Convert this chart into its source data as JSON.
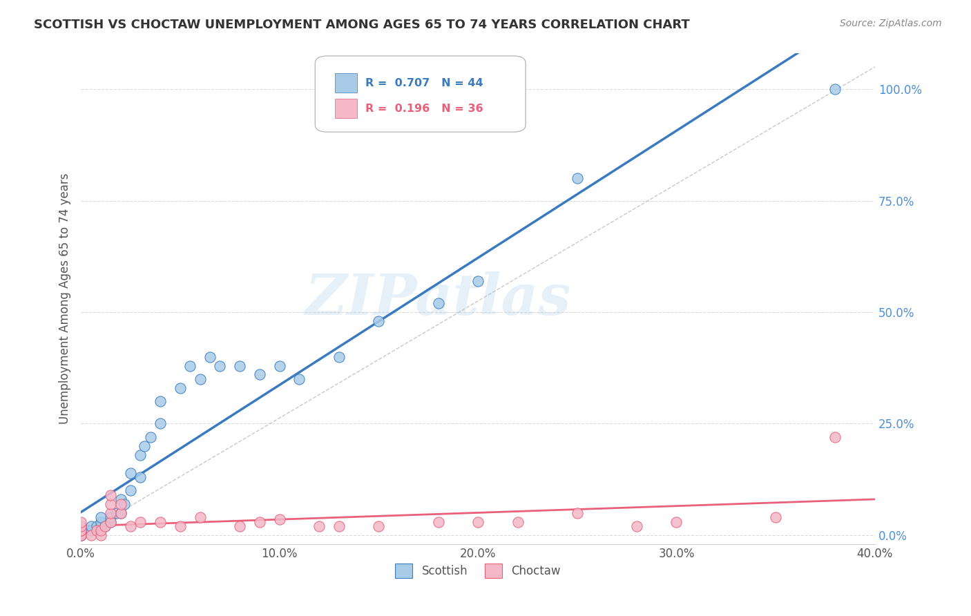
{
  "title": "SCOTTISH VS CHOCTAW UNEMPLOYMENT AMONG AGES 65 TO 74 YEARS CORRELATION CHART",
  "source": "Source: ZipAtlas.com",
  "ylabel": "Unemployment Among Ages 65 to 74 years",
  "xlim": [
    0.0,
    0.4
  ],
  "ylim": [
    -0.02,
    1.08
  ],
  "xtick_labels": [
    "0.0%",
    "10.0%",
    "20.0%",
    "30.0%",
    "40.0%"
  ],
  "xtick_vals": [
    0.0,
    0.1,
    0.2,
    0.3,
    0.4
  ],
  "ytick_labels": [
    "0.0%",
    "25.0%",
    "50.0%",
    "75.0%",
    "100.0%"
  ],
  "ytick_vals": [
    0.0,
    0.25,
    0.5,
    0.75,
    1.0
  ],
  "scottish_color": "#a8cce8",
  "choctaw_color": "#f4b8c8",
  "scottish_line_color": "#3a7abf",
  "choctaw_line_color": "#e8607a",
  "scottish_R": 0.707,
  "scottish_N": 44,
  "choctaw_R": 0.196,
  "choctaw_N": 36,
  "scottish_x": [
    0.0,
    0.0,
    0.0,
    0.0,
    0.0,
    0.0,
    0.0,
    0.005,
    0.005,
    0.008,
    0.01,
    0.01,
    0.01,
    0.01,
    0.012,
    0.015,
    0.015,
    0.018,
    0.02,
    0.02,
    0.022,
    0.025,
    0.025,
    0.03,
    0.03,
    0.032,
    0.035,
    0.04,
    0.04,
    0.05,
    0.055,
    0.06,
    0.065,
    0.07,
    0.08,
    0.09,
    0.1,
    0.11,
    0.13,
    0.15,
    0.18,
    0.2,
    0.25,
    0.38
  ],
  "scottish_y": [
    0.0,
    0.0,
    0.0,
    0.0,
    0.01,
    0.01,
    0.01,
    0.01,
    0.02,
    0.02,
    0.02,
    0.02,
    0.03,
    0.04,
    0.02,
    0.03,
    0.04,
    0.05,
    0.05,
    0.08,
    0.07,
    0.1,
    0.14,
    0.13,
    0.18,
    0.2,
    0.22,
    0.25,
    0.3,
    0.33,
    0.38,
    0.35,
    0.4,
    0.38,
    0.38,
    0.36,
    0.38,
    0.35,
    0.4,
    0.48,
    0.52,
    0.57,
    0.8,
    1.0
  ],
  "choctaw_x": [
    0.0,
    0.0,
    0.0,
    0.0,
    0.0,
    0.0,
    0.005,
    0.008,
    0.01,
    0.01,
    0.012,
    0.015,
    0.015,
    0.015,
    0.015,
    0.02,
    0.02,
    0.025,
    0.03,
    0.04,
    0.05,
    0.06,
    0.08,
    0.09,
    0.1,
    0.12,
    0.13,
    0.15,
    0.18,
    0.2,
    0.22,
    0.25,
    0.28,
    0.3,
    0.35,
    0.38
  ],
  "choctaw_y": [
    0.0,
    0.0,
    0.01,
    0.01,
    0.02,
    0.03,
    0.0,
    0.01,
    0.0,
    0.01,
    0.02,
    0.03,
    0.05,
    0.07,
    0.09,
    0.05,
    0.07,
    0.02,
    0.03,
    0.03,
    0.02,
    0.04,
    0.02,
    0.03,
    0.035,
    0.02,
    0.02,
    0.02,
    0.03,
    0.03,
    0.03,
    0.05,
    0.02,
    0.03,
    0.04,
    0.22
  ],
  "watermark": "ZIPatlas",
  "background_color": "#ffffff",
  "grid_color": "#cccccc"
}
